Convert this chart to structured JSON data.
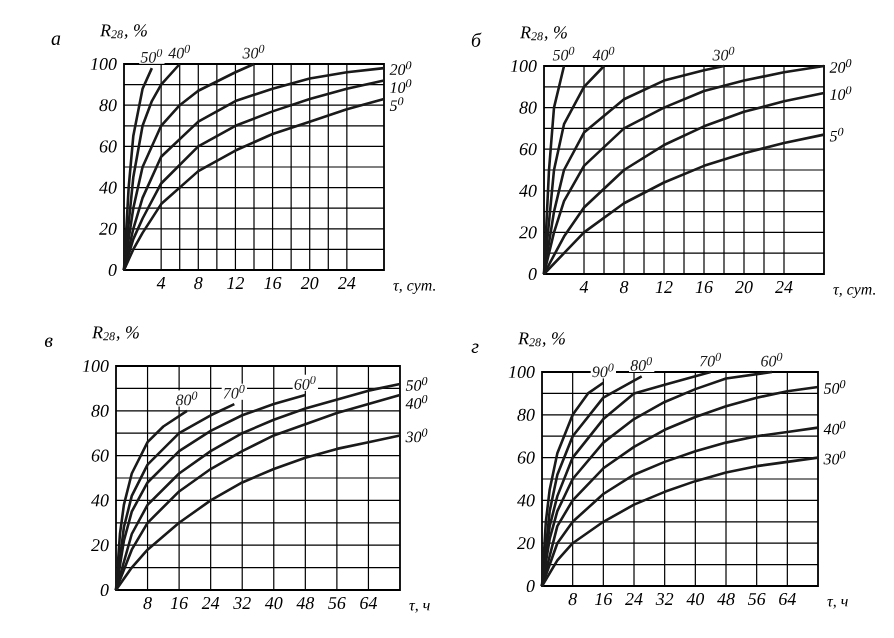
{
  "chart_data": [
    {
      "type": "line",
      "title": "а",
      "ylabel": "R$_{28}$, %",
      "xlabel": "τ, сут.",
      "xlim": [
        0,
        28
      ],
      "ylim": [
        0,
        100
      ],
      "xticks": [
        4,
        8,
        12,
        16,
        20,
        24
      ],
      "yticks": [
        0,
        20,
        40,
        60,
        80,
        100
      ],
      "grid": true,
      "color": "#1a1a1a",
      "series": [
        {
          "name": "50$^{0}$",
          "x": [
            0,
            0.5,
            1,
            2,
            3
          ],
          "values": [
            0,
            40,
            65,
            88,
            98
          ]
        },
        {
          "name": "40$^{0}$",
          "x": [
            0,
            1,
            2,
            3,
            4,
            6
          ],
          "values": [
            0,
            45,
            70,
            82,
            90,
            100
          ]
        },
        {
          "name": "30$^{0}$",
          "x": [
            0,
            1,
            2,
            4,
            6,
            8,
            12,
            14
          ],
          "values": [
            0,
            30,
            50,
            70,
            80,
            87,
            96,
            100
          ]
        },
        {
          "name": "20$^{0}$",
          "x": [
            0,
            1,
            2,
            4,
            8,
            12,
            16,
            20,
            24,
            28
          ],
          "values": [
            0,
            20,
            35,
            55,
            72,
            82,
            88,
            93,
            96,
            98
          ]
        },
        {
          "name": "10$^{0}$",
          "x": [
            0,
            1,
            2,
            4,
            8,
            12,
            16,
            20,
            24,
            28
          ],
          "values": [
            0,
            15,
            25,
            42,
            60,
            70,
            77,
            83,
            88,
            92
          ]
        },
        {
          "name": "5$^{0}$",
          "x": [
            0,
            1,
            2,
            4,
            8,
            12,
            16,
            20,
            24,
            28
          ],
          "values": [
            0,
            10,
            18,
            32,
            48,
            58,
            66,
            72,
            78,
            83
          ]
        }
      ]
    },
    {
      "type": "line",
      "title": "б",
      "ylabel": "R$_{28}$, %",
      "xlabel": "τ, сут.",
      "xlim": [
        0,
        28
      ],
      "ylim": [
        0,
        100
      ],
      "xticks": [
        4,
        8,
        12,
        16,
        20,
        24
      ],
      "yticks": [
        0,
        20,
        40,
        60,
        80,
        100
      ],
      "grid": true,
      "color": "#1a1a1a",
      "series": [
        {
          "name": "50$^{0}$",
          "x": [
            0,
            0.5,
            1,
            2
          ],
          "values": [
            0,
            50,
            80,
            100
          ]
        },
        {
          "name": "40$^{0}$",
          "x": [
            0,
            1,
            2,
            4,
            6
          ],
          "values": [
            0,
            50,
            72,
            90,
            100
          ]
        },
        {
          "name": "30$^{0}$",
          "x": [
            0,
            1,
            2,
            4,
            8,
            12,
            16,
            18
          ],
          "values": [
            0,
            30,
            50,
            68,
            84,
            93,
            98,
            100
          ]
        },
        {
          "name": "20$^{0}$",
          "x": [
            0,
            1,
            2,
            4,
            8,
            12,
            16,
            20,
            24,
            28
          ],
          "values": [
            0,
            20,
            35,
            52,
            70,
            80,
            88,
            93,
            97,
            100
          ]
        },
        {
          "name": "10$^{0}$",
          "x": [
            0,
            2,
            4,
            8,
            12,
            16,
            20,
            24,
            28
          ],
          "values": [
            0,
            18,
            32,
            50,
            62,
            71,
            78,
            83,
            87
          ]
        },
        {
          "name": "5$^{0}$",
          "x": [
            0,
            2,
            4,
            8,
            12,
            16,
            20,
            24,
            28
          ],
          "values": [
            0,
            10,
            20,
            34,
            44,
            52,
            58,
            63,
            67
          ]
        }
      ]
    },
    {
      "type": "line",
      "title": "в",
      "ylabel": "R$_{28}$, %",
      "xlabel": "τ, ч",
      "xlim": [
        0,
        72
      ],
      "ylim": [
        0,
        100
      ],
      "xticks": [
        8,
        16,
        24,
        32,
        40,
        48,
        56,
        64
      ],
      "yticks": [
        0,
        20,
        40,
        60,
        80,
        100
      ],
      "grid": true,
      "color": "#1a1a1a",
      "series": [
        {
          "name": "80$^{0}$",
          "x": [
            0,
            1,
            2,
            4,
            8,
            12,
            18
          ],
          "values": [
            0,
            25,
            38,
            52,
            66,
            73,
            80
          ]
        },
        {
          "name": "70$^{0}$",
          "x": [
            0,
            2,
            4,
            8,
            16,
            24,
            30
          ],
          "values": [
            0,
            28,
            42,
            56,
            70,
            78,
            83
          ]
        },
        {
          "name": "60$^{0}$",
          "x": [
            0,
            2,
            4,
            8,
            16,
            24,
            32,
            40,
            48
          ],
          "values": [
            0,
            22,
            35,
            48,
            62,
            71,
            78,
            83,
            87
          ]
        },
        {
          "name": "50$^{0}$",
          "x": [
            0,
            4,
            8,
            16,
            24,
            32,
            40,
            48,
            56,
            64,
            72
          ],
          "values": [
            0,
            25,
            38,
            52,
            62,
            70,
            76,
            81,
            85,
            89,
            92
          ]
        },
        {
          "name": "40$^{0}$",
          "x": [
            0,
            4,
            8,
            16,
            24,
            32,
            40,
            48,
            56,
            64,
            72
          ],
          "values": [
            0,
            18,
            30,
            44,
            54,
            62,
            69,
            74,
            79,
            83,
            87
          ]
        },
        {
          "name": "30$^{0}$",
          "x": [
            0,
            4,
            8,
            16,
            24,
            32,
            40,
            48,
            56,
            64,
            72
          ],
          "values": [
            0,
            10,
            18,
            30,
            40,
            48,
            54,
            59,
            63,
            66,
            69
          ]
        }
      ]
    },
    {
      "type": "line",
      "title": "г",
      "ylabel": "R$_{28}$, %",
      "xlabel": "τ, ч",
      "xlim": [
        0,
        72
      ],
      "ylim": [
        0,
        100
      ],
      "xticks": [
        8,
        16,
        24,
        32,
        40,
        48,
        56,
        64
      ],
      "yticks": [
        0,
        20,
        40,
        60,
        80,
        100
      ],
      "grid": true,
      "color": "#1a1a1a",
      "series": [
        {
          "name": "90$^{0}$",
          "x": [
            0,
            1,
            2,
            4,
            8,
            12,
            16
          ],
          "values": [
            0,
            30,
            45,
            62,
            80,
            90,
            95
          ]
        },
        {
          "name": "80$^{0}$",
          "x": [
            0,
            2,
            4,
            8,
            16,
            26
          ],
          "values": [
            0,
            35,
            52,
            70,
            88,
            98
          ]
        },
        {
          "name": "70$^{0}$",
          "x": [
            0,
            2,
            4,
            8,
            16,
            24,
            32,
            44
          ],
          "values": [
            0,
            28,
            42,
            60,
            78,
            90,
            94,
            100
          ]
        },
        {
          "name": "60$^{0}$",
          "x": [
            0,
            2,
            4,
            8,
            16,
            24,
            32,
            40,
            48,
            60
          ],
          "values": [
            0,
            22,
            35,
            50,
            67,
            78,
            86,
            92,
            97,
            100
          ]
        },
        {
          "name": "50$^{0}$",
          "x": [
            0,
            4,
            8,
            16,
            24,
            32,
            40,
            48,
            56,
            64,
            72
          ],
          "values": [
            0,
            28,
            40,
            55,
            65,
            73,
            79,
            84,
            88,
            91,
            93
          ]
        },
        {
          "name": "40$^{0}$",
          "x": [
            0,
            4,
            8,
            16,
            24,
            32,
            40,
            48,
            56,
            64,
            72
          ],
          "values": [
            0,
            20,
            30,
            43,
            52,
            58,
            63,
            67,
            70,
            72,
            74
          ]
        },
        {
          "name": "30$^{0}$",
          "x": [
            0,
            4,
            8,
            16,
            24,
            32,
            40,
            48,
            56,
            64,
            72
          ],
          "values": [
            0,
            12,
            20,
            30,
            38,
            44,
            49,
            53,
            56,
            58,
            60
          ]
        }
      ]
    }
  ]
}
